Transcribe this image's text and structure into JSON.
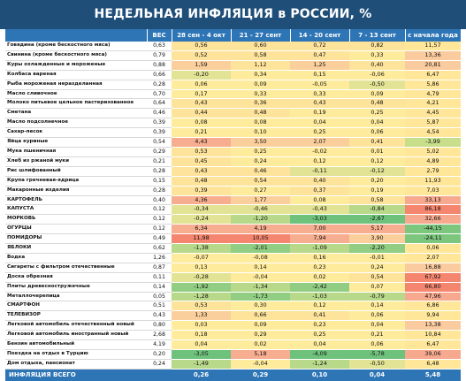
{
  "title": "НЕДЕЛЬНАЯ ИНФЛЯЦИЯ в РОССИИ, %",
  "headers": [
    "",
    "ВЕС",
    "28 сен - 4 окт",
    "21 - 27 сент",
    "14 - 20 сент",
    "7 - 13 сент",
    "с начала года"
  ],
  "colors": {
    "header_bg": "#2e75b6",
    "title_bg": "#1f4e79",
    "yellow": "#ffe699",
    "orange": "#f8cb9c",
    "red": "#f08a75",
    "green": "#63be7b"
  },
  "rows": [
    {
      "name": "Говядина (кроме бескостного мяса)",
      "w": "0,63",
      "v": [
        "0,56",
        "0,60",
        "0,72",
        "0,82",
        "11,57"
      ]
    },
    {
      "name": "Свинина (кроме бескостного мяса)",
      "w": "0,79",
      "v": [
        "0,52",
        "0,58",
        "0,47",
        "0,33",
        "13,36"
      ]
    },
    {
      "name": "Куры охлажденные и мороженые",
      "w": "0,88",
      "v": [
        "1,59",
        "1,12",
        "1,25",
        "0,40",
        "20,81"
      ]
    },
    {
      "name": "Колбаса вареная",
      "w": "0,66",
      "v": [
        "-0,20",
        "0,34",
        "0,15",
        "-0,06",
        "6,47"
      ]
    },
    {
      "name": "Рыба мороженая неразделанная",
      "w": "0,28",
      "v": [
        "0,06",
        "0,09",
        "-0,05",
        "-0,50",
        "5,86"
      ]
    },
    {
      "name": "Масло сливочное",
      "w": "0,70",
      "v": [
        "0,17",
        "0,33",
        "0,33",
        "0,09",
        "4,79"
      ],
      "sep": true
    },
    {
      "name": "Молоко питьевое цельное пастеризованное",
      "w": "0,64",
      "v": [
        "0,43",
        "0,36",
        "0,43",
        "0,48",
        "4,21"
      ]
    },
    {
      "name": "Сметана",
      "w": "0,46",
      "v": [
        "0,44",
        "0,48",
        "0,19",
        "0,25",
        "4,45"
      ]
    },
    {
      "name": "Масло подсолнечное",
      "w": "0,39",
      "v": [
        "0,08",
        "0,08",
        "0,04",
        "0,04",
        "5,87"
      ],
      "sep": true
    },
    {
      "name": "Сахар-песок",
      "w": "0,39",
      "v": [
        "0,21",
        "0,10",
        "0,25",
        "0,06",
        "4,54"
      ]
    },
    {
      "name": "Яйца куриные",
      "w": "0,54",
      "v": [
        "4,43",
        "3,50",
        "2,07",
        "0,41",
        "-3,99"
      ],
      "sep": true
    },
    {
      "name": "Мука пшеничная",
      "w": "0,29",
      "v": [
        "0,53",
        "0,25",
        "-0,02",
        "0,01",
        "5,02"
      ]
    },
    {
      "name": "Хлеб из ржаной муки",
      "w": "0,21",
      "v": [
        "0,45",
        "0,24",
        "0,12",
        "0,12",
        "4,89"
      ]
    },
    {
      "name": "Рис шлифованный",
      "w": "0,28",
      "v": [
        "0,43",
        "0,46",
        "-0,11",
        "-0,12",
        "2,79"
      ]
    },
    {
      "name": "Крупа гречневая-ядрица",
      "w": "0,15",
      "v": [
        "0,48",
        "0,54",
        "0,40",
        "0,20",
        "11,93"
      ]
    },
    {
      "name": "Макаронные изделия",
      "w": "0,28",
      "v": [
        "0,39",
        "0,27",
        "0,37",
        "0,19",
        "7,03"
      ]
    },
    {
      "name": "КАРТОФЕЛЬ",
      "w": "0,40",
      "v": [
        "4,36",
        "1,77",
        "0,08",
        "0,58",
        "33,13"
      ],
      "sep": true
    },
    {
      "name": "КАПУСТА",
      "w": "0,12",
      "v": [
        "-0,34",
        "-0,46",
        "-0,43",
        "-0,84",
        "86,18"
      ]
    },
    {
      "name": "МОРКОВЬ",
      "w": "0,12",
      "v": [
        "-0,24",
        "-1,20",
        "-3,03",
        "-2,67",
        "32,66"
      ]
    },
    {
      "name": "ОГУРЦЫ",
      "w": "0,12",
      "v": [
        "6,34",
        "4,19",
        "7,00",
        "5,17",
        "-44,15"
      ]
    },
    {
      "name": "ПОМИДОРЫ",
      "w": "0,49",
      "v": [
        "11,98",
        "10,05",
        "7,94",
        "3,90",
        "-24,11"
      ]
    },
    {
      "name": "ЯБЛОКИ",
      "w": "0,62",
      "v": [
        "-1,38",
        "-2,01",
        "-1,09",
        "-2,20",
        "0,06"
      ]
    },
    {
      "name": "Водка",
      "w": "1,26",
      "v": [
        "-0,07",
        "-0,08",
        "0,16",
        "-0,01",
        "2,07"
      ],
      "sep": true
    },
    {
      "name": "Сигареты с фильтром отечественные",
      "w": "0,87",
      "v": [
        "0,13",
        "0,14",
        "0,23",
        "0,24",
        "16,88"
      ]
    },
    {
      "name": "Доска обрезная",
      "w": "0,11",
      "v": [
        "-0,28",
        "-0,04",
        "0,02",
        "0,54",
        "67,92"
      ],
      "sep": true
    },
    {
      "name": "Плиты древесностружечные",
      "w": "0,14",
      "v": [
        "-1,92",
        "-1,34",
        "-2,42",
        "0,07",
        "66,80"
      ]
    },
    {
      "name": "Металлочерепица",
      "w": "0,05",
      "v": [
        "-1,28",
        "-1,73",
        "-1,03",
        "-0,79",
        "47,96"
      ]
    },
    {
      "name": "СМАРТФОН",
      "w": "0,51",
      "v": [
        "0,53",
        "0,30",
        "0,12",
        "0,14",
        "6,86"
      ],
      "sep": true
    },
    {
      "name": "ТЕЛЕВИЗОР",
      "w": "0,43",
      "v": [
        "1,33",
        "0,66",
        "0,41",
        "0,06",
        "9,94"
      ]
    },
    {
      "name": "Легковой автомобиль отечественный новый",
      "w": "0,80",
      "v": [
        "0,03",
        "0,09",
        "0,23",
        "0,04",
        "13,38"
      ],
      "sep": true
    },
    {
      "name": "Легковой автомобиль иностранный новый",
      "w": "2,68",
      "v": [
        "0,18",
        "0,29",
        "0,25",
        "0,21",
        "10,84"
      ]
    },
    {
      "name": "Бензин автомобильный",
      "w": "4,19",
      "v": [
        "0,04",
        "0,02",
        "0,04",
        "0,06",
        "6,47"
      ]
    },
    {
      "name": "Поездка на отдых в Турцию",
      "w": "0,20",
      "v": [
        "-3,05",
        "5,18",
        "-4,09",
        "-5,78",
        "39,06"
      ],
      "sep": true
    },
    {
      "name": "Дом отдыха, пансионат",
      "w": "0,24",
      "v": [
        "-1,49",
        "-0,04",
        "-1,24",
        "-0,50",
        "6,48"
      ]
    }
  ],
  "total": {
    "name": "ИНФЛЯЦИЯ ВСЕГО",
    "v": [
      "0,26",
      "0,29",
      "0,10",
      "0,04",
      "5,48"
    ]
  }
}
